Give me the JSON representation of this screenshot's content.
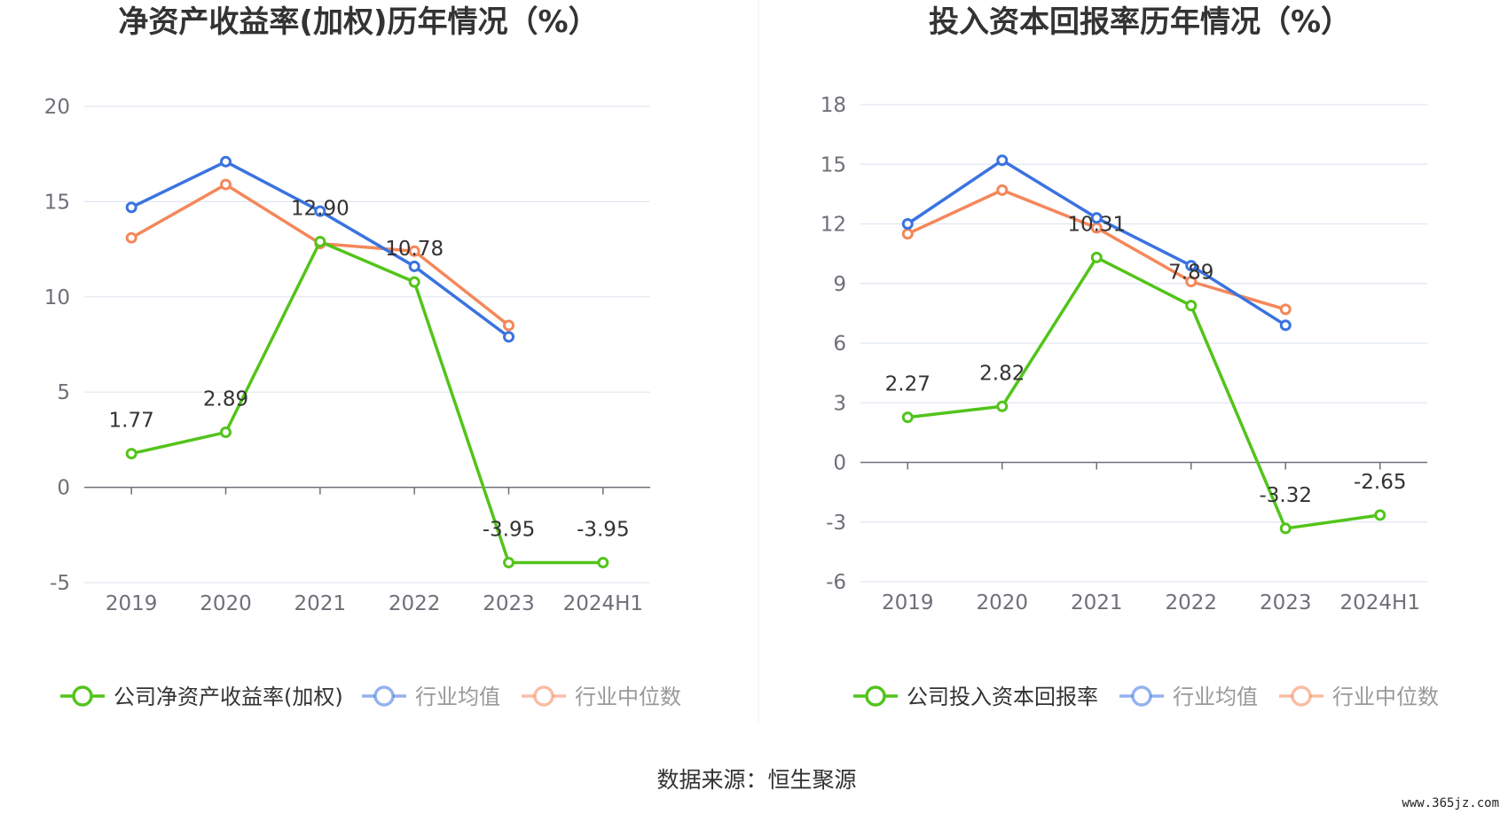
{
  "chart_data": [
    {
      "type": "line",
      "title": "净资产收益率(加权)历年情况（%）",
      "categories": [
        "2019",
        "2020",
        "2021",
        "2022",
        "2023",
        "2024H1"
      ],
      "ylim": [
        -5,
        20
      ],
      "yticks": [
        20,
        15,
        10,
        5,
        0,
        -5
      ],
      "grid": true,
      "legend_position": "bottom",
      "series": [
        {
          "name": "公司净资产收益率(加权)",
          "color": "#52c41a",
          "values": [
            1.77,
            2.89,
            12.9,
            10.78,
            -3.95,
            -3.95
          ],
          "labels": [
            "1.77",
            "2.89",
            "12.90",
            "10.78",
            "-3.95",
            "-3.95"
          ]
        },
        {
          "name": "行业均值",
          "color": "#3a73e0",
          "values": [
            14.7,
            17.1,
            14.5,
            11.6,
            7.9,
            null
          ]
        },
        {
          "name": "行业中位数",
          "color": "#f4875a",
          "values": [
            13.1,
            15.9,
            12.8,
            12.4,
            8.5,
            null
          ]
        }
      ]
    },
    {
      "type": "line",
      "title": "投入资本回报率历年情况（%）",
      "categories": [
        "2019",
        "2020",
        "2021",
        "2022",
        "2023",
        "2024H1"
      ],
      "ylim": [
        -6,
        18
      ],
      "yticks": [
        18,
        15,
        12,
        9,
        6,
        3,
        0,
        -3,
        -6
      ],
      "grid": true,
      "legend_position": "bottom",
      "series": [
        {
          "name": "公司投入资本回报率",
          "color": "#52c41a",
          "values": [
            2.27,
            2.82,
            10.31,
            7.89,
            -3.32,
            -2.65
          ],
          "labels": [
            "2.27",
            "2.82",
            "10.31",
            "7.89",
            "-3.32",
            "-2.65"
          ]
        },
        {
          "name": "行业均值",
          "color": "#3a73e0",
          "values": [
            12.0,
            15.2,
            12.3,
            9.9,
            6.9,
            null
          ]
        },
        {
          "name": "行业中位数",
          "color": "#f4875a",
          "values": [
            11.5,
            13.7,
            11.8,
            9.1,
            7.7,
            null
          ]
        }
      ]
    }
  ],
  "footer": {
    "source": "数据来源：恒生聚源",
    "watermark": "www.365jz.com"
  },
  "colors": {
    "grid": "#e0e6f1",
    "axis": "#6e7079",
    "divider": "#eeeeee"
  }
}
